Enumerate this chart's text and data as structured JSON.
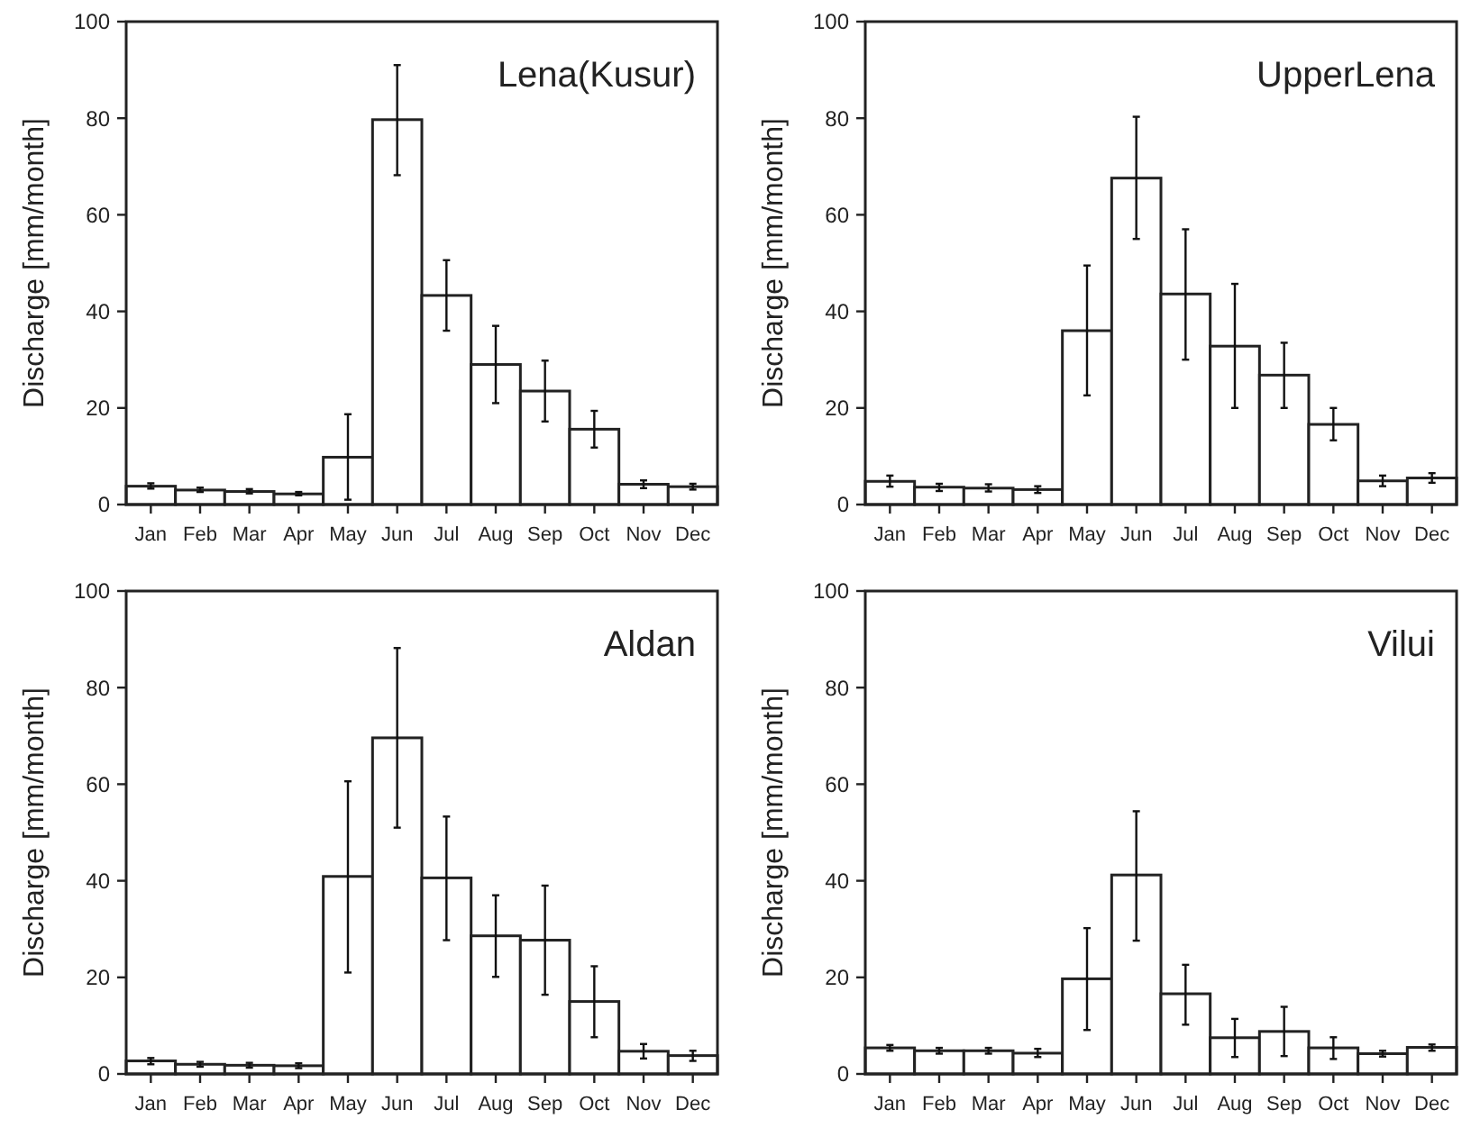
{
  "chart_data": [
    {
      "type": "bar",
      "title": "Lena(Kusur)",
      "ylabel": "Discharge [mm/month]",
      "categories": [
        "Jan",
        "Feb",
        "Mar",
        "Apr",
        "May",
        "Jun",
        "Jul",
        "Aug",
        "Sep",
        "Oct",
        "Nov",
        "Dec"
      ],
      "values": [
        3.8,
        3,
        2.7,
        2.2,
        9.8,
        79.7,
        43.3,
        29,
        23.5,
        15.6,
        4.2,
        3.7
      ],
      "errors": [
        [
          3.3,
          4.4
        ],
        [
          2.6,
          3.5
        ],
        [
          2.3,
          3.2
        ],
        [
          1.9,
          2.6
        ],
        [
          1,
          18.7
        ],
        [
          68.2,
          91
        ],
        [
          36,
          50.6
        ],
        [
          21,
          37
        ],
        [
          17.2,
          29.8
        ],
        [
          11.8,
          19.4
        ],
        [
          3.4,
          5
        ],
        [
          3.1,
          4.3
        ]
      ],
      "color": "#ffffff",
      "ylim": [
        0,
        100
      ],
      "yticks": [
        0,
        20,
        40,
        60,
        80,
        100
      ],
      "grid": false
    },
    {
      "type": "bar",
      "title": "UpperLena",
      "ylabel": "Discharge [mm/month]",
      "categories": [
        "Jan",
        "Feb",
        "Mar",
        "Apr",
        "May",
        "Jun",
        "Jul",
        "Aug",
        "Sep",
        "Oct",
        "Nov",
        "Dec"
      ],
      "values": [
        4.8,
        3.6,
        3.4,
        3.1,
        36,
        67.6,
        43.6,
        32.8,
        26.8,
        16.6,
        4.9,
        5.5
      ],
      "errors": [
        [
          3.7,
          6
        ],
        [
          2.8,
          4.3
        ],
        [
          2.7,
          4.2
        ],
        [
          2.4,
          3.8
        ],
        [
          22.6,
          49.5
        ],
        [
          55,
          80.3
        ],
        [
          30,
          57
        ],
        [
          20,
          45.7
        ],
        [
          20,
          33.5
        ],
        [
          13.3,
          20
        ],
        [
          3.8,
          6
        ],
        [
          4.5,
          6.5
        ]
      ],
      "color": "#ffffff",
      "ylim": [
        0,
        100
      ],
      "yticks": [
        0,
        20,
        40,
        60,
        80,
        100
      ],
      "grid": false
    },
    {
      "type": "bar",
      "title": "Aldan",
      "ylabel": "Discharge [mm/month]",
      "categories": [
        "Jan",
        "Feb",
        "Mar",
        "Apr",
        "May",
        "Jun",
        "Jul",
        "Aug",
        "Sep",
        "Oct",
        "Nov",
        "Dec"
      ],
      "values": [
        2.7,
        2,
        1.8,
        1.7,
        40.9,
        69.6,
        40.6,
        28.6,
        27.7,
        15,
        4.7,
        3.8
      ],
      "errors": [
        [
          2,
          3.3
        ],
        [
          1.5,
          2.5
        ],
        [
          1.3,
          2.3
        ],
        [
          1.2,
          2.2
        ],
        [
          21,
          60.6
        ],
        [
          51,
          88.2
        ],
        [
          27.7,
          53.3
        ],
        [
          20.1,
          37
        ],
        [
          16.4,
          39
        ],
        [
          7.6,
          22.3
        ],
        [
          3.2,
          6.2
        ],
        [
          2.7,
          4.8
        ]
      ],
      "color": "#ffffff",
      "ylim": [
        0,
        100
      ],
      "yticks": [
        0,
        20,
        40,
        60,
        80,
        100
      ],
      "grid": false
    },
    {
      "type": "bar",
      "title": "Vilui",
      "ylabel": "Discharge [mm/month]",
      "categories": [
        "Jan",
        "Feb",
        "Mar",
        "Apr",
        "May",
        "Jun",
        "Jul",
        "Aug",
        "Sep",
        "Oct",
        "Nov",
        "Dec"
      ],
      "values": [
        5.4,
        4.8,
        4.8,
        4.3,
        19.7,
        41.2,
        16.6,
        7.5,
        8.8,
        5.4,
        4.2,
        5.5
      ],
      "errors": [
        [
          4.8,
          6
        ],
        [
          4.2,
          5.4
        ],
        [
          4.2,
          5.4
        ],
        [
          3.5,
          5.2
        ],
        [
          9.1,
          30.2
        ],
        [
          27.6,
          54.4
        ],
        [
          10.2,
          22.6
        ],
        [
          3.5,
          11.4
        ],
        [
          3.7,
          13.9
        ],
        [
          3.1,
          7.6
        ],
        [
          3.6,
          4.8
        ],
        [
          4.8,
          6.1
        ]
      ],
      "color": "#ffffff",
      "ylim": [
        0,
        100
      ],
      "yticks": [
        0,
        20,
        40,
        60,
        80,
        100
      ],
      "grid": false
    }
  ]
}
